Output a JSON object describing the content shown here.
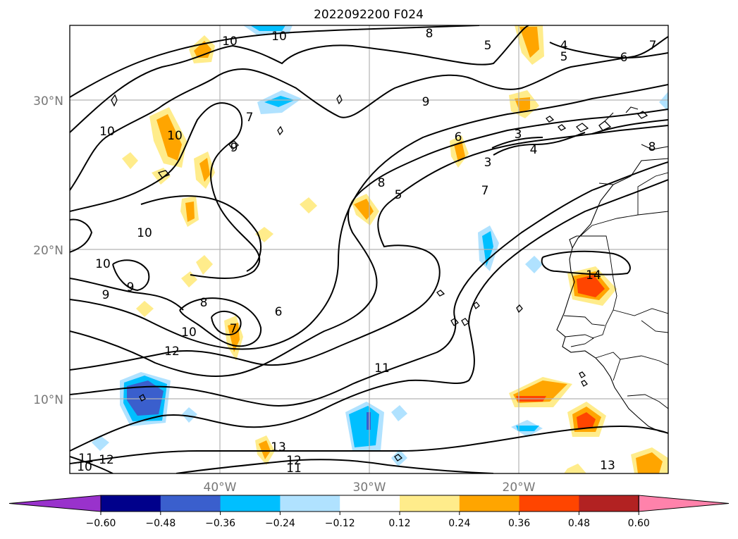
{
  "title": "2022092200 F024",
  "map": {
    "lat_ticks": [
      "30°N",
      "20°N",
      "10°N"
    ],
    "lon_ticks": [
      "40°W",
      "30°W",
      "20°W"
    ],
    "extent": {
      "lon": [
        -50,
        -10
      ],
      "lat": [
        5,
        35
      ]
    },
    "grid": true
  },
  "contour_labels": [
    "10",
    "10",
    "8",
    "5",
    "4",
    "5",
    "6",
    "7",
    "7",
    "9",
    "10",
    "10",
    "9",
    "6",
    "3",
    "3",
    "4",
    "8",
    "8",
    "5",
    "7",
    "10",
    "10",
    "9",
    "9",
    "8",
    "6",
    "7",
    "10",
    "12",
    "11",
    "14",
    "13",
    "12",
    "11",
    "13",
    "12",
    "11",
    "10"
  ],
  "colorbar": {
    "ticks": [
      "−0.60",
      "−0.48",
      "−0.36",
      "−0.24",
      "−0.12",
      "0.12",
      "0.24",
      "0.36",
      "0.48",
      "0.60"
    ],
    "colors": [
      "#9932cc",
      "#00008b",
      "#3a5fcd",
      "#00bfff",
      "#b0e2ff",
      "#ffffff",
      "#ffec8b",
      "#ffa500",
      "#ff4500",
      "#b22222",
      "#ff82ab"
    ]
  },
  "colors": {
    "frame": "#000000",
    "grid": "#b5b5b5",
    "contour": "#000000"
  }
}
